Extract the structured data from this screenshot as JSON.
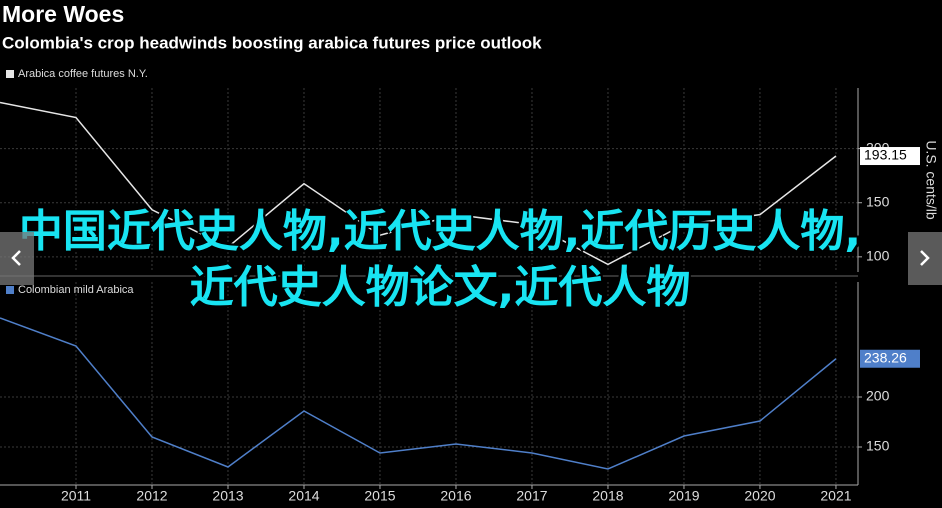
{
  "header": {
    "title": "More Woes",
    "subtitle": "Colombia's crop headwinds boosting arabica futures price outlook"
  },
  "overlay": {
    "text": "中国近代史人物,近代史人物,近代历史人物,近代史人物论文,近代人物"
  },
  "chart_data": [
    {
      "type": "line",
      "legend": "Arabica coffee futures N.Y.",
      "axis_label": "U.S. cents/lb",
      "x": [
        2010,
        2011,
        2012,
        2013,
        2014,
        2015,
        2016,
        2017,
        2018,
        2019,
        2020,
        2021
      ],
      "series": [
        {
          "name": "Arabica coffee futures N.Y.",
          "color": "#e6e6e6",
          "values": [
            242.6,
            228.7,
            143.5,
            109,
            167.6,
            120,
            139,
            130,
            93,
            130,
            139,
            193.15
          ]
        }
      ],
      "xlim": [
        2010,
        2021.29
      ],
      "ylim": [
        86,
        256
      ],
      "yticks": [
        100,
        150,
        200
      ],
      "grid": true
    },
    {
      "type": "line",
      "legend": "Colombian mild Arabica",
      "x": [
        2010,
        2011,
        2012,
        2013,
        2014,
        2015,
        2016,
        2017,
        2018,
        2019,
        2020,
        2021
      ],
      "series": [
        {
          "name": "Colombian mild Arabica",
          "color": "#4f7fc9",
          "values": [
            279,
            251,
            160,
            130,
            186,
            144,
            153,
            144,
            128,
            161,
            176,
            238.26
          ]
        }
      ],
      "xlim": [
        2010,
        2021.29
      ],
      "ylim": [
        112,
        315
      ],
      "yticks": [
        150,
        200
      ],
      "xticks": [
        2011,
        2012,
        2013,
        2014,
        2015,
        2016,
        2017,
        2018,
        2019,
        2020,
        2021
      ],
      "grid": true
    }
  ]
}
